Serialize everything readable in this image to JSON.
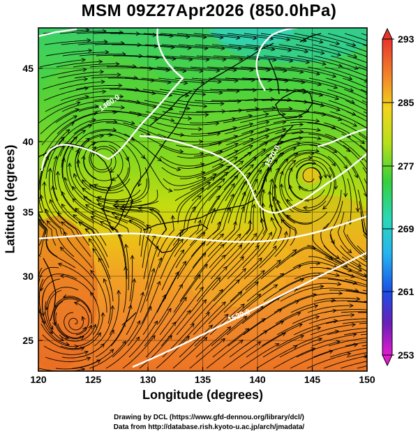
{
  "title": "MSM 09Z27Apr2026 (850.0hPa)",
  "x_axis": {
    "label": "Longitude (degrees)",
    "ticks": [
      "120",
      "125",
      "130",
      "135",
      "140",
      "145",
      "150"
    ]
  },
  "y_axis": {
    "label": "Latitude  (degrees)",
    "ticks": [
      "25",
      "30",
      "35",
      "40",
      "45"
    ]
  },
  "colorbar": {
    "ticks": [
      "293",
      "285",
      "277",
      "269",
      "261",
      "253"
    ],
    "min": 253,
    "max": 293
  },
  "contour_labels": [
    "1460.0",
    "1520.0",
    "1520.0"
  ],
  "credits": {
    "line1": "Drawing by DCL (https://www.gfd-dennou.org/library/dcl/)",
    "line2": "Data from http://database.rish.kyoto-u.ac.jp/arch/jmadata/"
  },
  "map_extent": {
    "lon": [
      120,
      150
    ],
    "lat": [
      22.5,
      47.6
    ]
  }
}
